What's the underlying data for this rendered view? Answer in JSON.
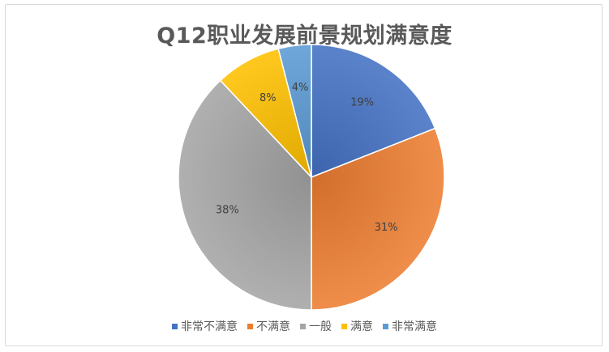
{
  "chart_data": {
    "type": "pie",
    "title": "Q12职业发展前景规划满意度",
    "categories": [
      "非常不满意",
      "不满意",
      "一般",
      "满意",
      "非常满意"
    ],
    "values": [
      19,
      31,
      38,
      8,
      4
    ],
    "labels": [
      "19%",
      "31%",
      "38%",
      "8%",
      "4%"
    ],
    "colors": [
      "#4472c4",
      "#ed7d31",
      "#a5a5a5",
      "#ffc000",
      "#5b9bd5"
    ],
    "legend_position": "bottom"
  }
}
